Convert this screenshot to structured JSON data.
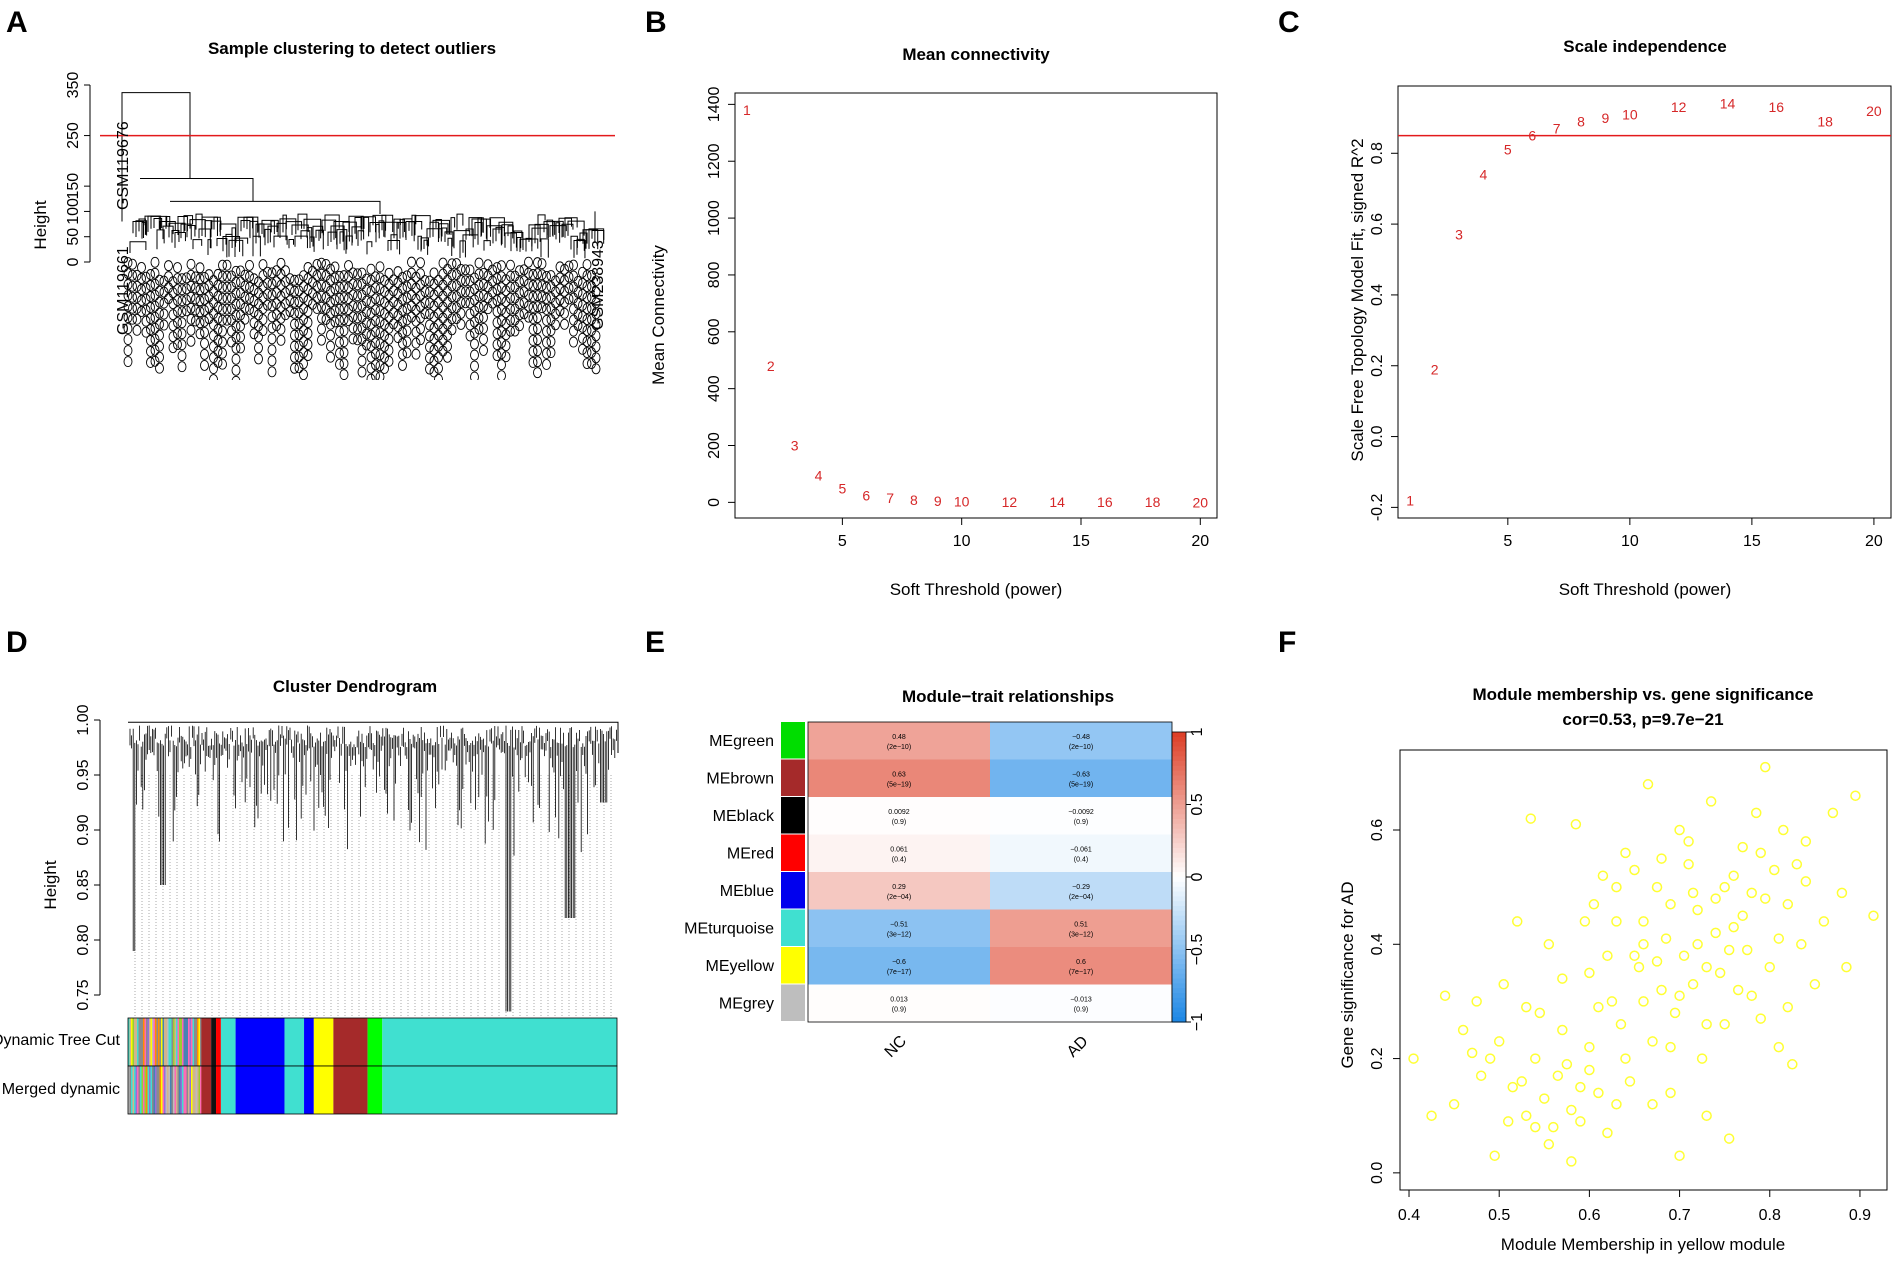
{
  "panels": {
    "A": {
      "label": "A",
      "title": "Sample clustering to detect outliers",
      "ylabel": "Height",
      "yticks": [
        "0",
        "50",
        "100",
        "150",
        "250",
        "350"
      ],
      "yticks_values": [
        0,
        50,
        100,
        150,
        250,
        350
      ],
      "cut_height": 250,
      "outlier_label": "GSM119676",
      "outlier_label_2": "GSM119661",
      "right_label": "GSM238943",
      "line_color": "#e31a1c"
    },
    "D": {
      "label": "D",
      "title": "Cluster Dendrogram",
      "ylabel": "Height",
      "yticks": [
        "0.75",
        "0.80",
        "0.85",
        "0.90",
        "0.95",
        "1.00"
      ],
      "ytick_values": [
        0.75,
        0.8,
        0.85,
        0.9,
        0.95,
        1.0
      ],
      "row_labels": [
        "Dynamic Tree Cut",
        "Merged dynamic"
      ],
      "module_colors": [
        "#bdbdbd",
        "#00cc00",
        "#a52a2a",
        "#111111",
        "#ff0000",
        "#0000ff",
        "#40e0d0",
        "#ffff00",
        "#ff8c00",
        "#8b4513",
        "#ff69b4",
        "#9370db"
      ]
    }
  },
  "chart_data": [
    {
      "panel": "B",
      "label": "B",
      "type": "scatter",
      "title": "Mean connectivity",
      "xlabel": "Soft Threshold (power)",
      "ylabel": "Mean Connectivity",
      "x": [
        1,
        2,
        3,
        4,
        5,
        6,
        7,
        8,
        9,
        10,
        12,
        14,
        16,
        18,
        20
      ],
      "y": [
        1380,
        480,
        200,
        95,
        48,
        25,
        15,
        8,
        5,
        3,
        2,
        1,
        1,
        1,
        0
      ],
      "point_labels": [
        "1",
        "2",
        "3",
        "4",
        "5",
        "6",
        "7",
        "8",
        "9",
        "10",
        "12",
        "14",
        "16",
        "18",
        "20"
      ],
      "xticks": [
        5,
        10,
        15,
        20
      ],
      "yticks": [
        0,
        200,
        400,
        600,
        800,
        1000,
        1200,
        1400
      ],
      "xlim": [
        0.5,
        20.7
      ],
      "ylim": [
        -55,
        1440
      ],
      "color": "#d62728"
    },
    {
      "panel": "C",
      "label": "C",
      "type": "scatter",
      "title": "Scale independence",
      "xlabel": "Soft Threshold (power)",
      "ylabel": "Scale Free Topology Model Fit, signed R^2",
      "x": [
        1,
        2,
        3,
        4,
        5,
        6,
        7,
        8,
        9,
        10,
        12,
        14,
        16,
        18,
        20
      ],
      "y": [
        -0.18,
        0.19,
        0.57,
        0.74,
        0.81,
        0.85,
        0.87,
        0.89,
        0.9,
        0.91,
        0.93,
        0.94,
        0.93,
        0.89,
        0.92
      ],
      "point_labels": [
        "1",
        "2",
        "3",
        "4",
        "5",
        "6",
        "7",
        "8",
        "9",
        "10",
        "12",
        "14",
        "16",
        "18",
        "20"
      ],
      "xticks": [
        5,
        10,
        15,
        20
      ],
      "yticks": [
        -0.2,
        0.0,
        0.2,
        0.4,
        0.6,
        0.8
      ],
      "ytick_labels": [
        "-0.2",
        "0.0",
        "0.2",
        "0.4",
        "0.6",
        "0.8"
      ],
      "xlim": [
        0.5,
        20.7
      ],
      "ylim": [
        -0.23,
        0.99
      ],
      "hline": 0.85,
      "color": "#d62728"
    },
    {
      "panel": "E",
      "label": "E",
      "type": "heatmap",
      "title": "Module−trait relationships",
      "rows": [
        "MEgreen",
        "MEbrown",
        "MEblack",
        "MEred",
        "MEblue",
        "MEturquoise",
        "MEyellow",
        "MEgrey"
      ],
      "row_colors": [
        "#00dd00",
        "#a52a2a",
        "#000000",
        "#ff0000",
        "#0000ee",
        "#40e0d0",
        "#ffff00",
        "#bebebe"
      ],
      "columns": [
        "NC",
        "AD"
      ],
      "values": [
        [
          0.48,
          -0.48
        ],
        [
          0.63,
          -0.63
        ],
        [
          0.0092,
          -0.0092
        ],
        [
          0.061,
          -0.061
        ],
        [
          0.29,
          -0.29
        ],
        [
          -0.51,
          0.51
        ],
        [
          -0.6,
          0.6
        ],
        [
          0.013,
          -0.013
        ]
      ],
      "value_labels": [
        [
          "0.48",
          "−0.48"
        ],
        [
          "0.63",
          "−0.63"
        ],
        [
          "0.0092",
          "−0.0092"
        ],
        [
          "0.061",
          "−0.061"
        ],
        [
          "0.29",
          "−0.29"
        ],
        [
          "−0.51",
          "0.51"
        ],
        [
          "−0.6",
          "0.6"
        ],
        [
          "0.013",
          "−0.013"
        ]
      ],
      "pvalues": [
        [
          "(2e−10)",
          "(2e−10)"
        ],
        [
          "(5e−19)",
          "(5e−19)"
        ],
        [
          "(0.9)",
          "(0.9)"
        ],
        [
          "(0.4)",
          "(0.4)"
        ],
        [
          "(2e−04)",
          "(2e−04)"
        ],
        [
          "(3e−12)",
          "(3e−12)"
        ],
        [
          "(7e−17)",
          "(7e−17)"
        ],
        [
          "(0.9)",
          "(0.9)"
        ]
      ],
      "colorbar_ticks": [
        1,
        0.5,
        0,
        -0.5,
        -1
      ],
      "colorbar_labels": [
        "1",
        "0.5",
        "0",
        "−0.5",
        "−1"
      ]
    },
    {
      "panel": "F",
      "label": "F",
      "type": "scatter",
      "title": "Module membership vs. gene significance",
      "subtitle": "cor=0.53, p=9.7e−21",
      "xlabel": "Module Membership in yellow module",
      "ylabel": "Gene significance for AD",
      "xticks": [
        0.4,
        0.5,
        0.6,
        0.7,
        0.8,
        0.9
      ],
      "xtick_labels": [
        "0.4",
        "0.5",
        "0.6",
        "0.7",
        "0.8",
        "0.9"
      ],
      "yticks": [
        0.0,
        0.2,
        0.4,
        0.6
      ],
      "ytick_labels": [
        "0.0",
        "0.2",
        "0.4",
        "0.6"
      ],
      "xlim": [
        0.39,
        0.93
      ],
      "ylim": [
        -0.03,
        0.74
      ],
      "color": "#ffff33",
      "points": [
        [
          0.405,
          0.2
        ],
        [
          0.425,
          0.1
        ],
        [
          0.44,
          0.31
        ],
        [
          0.45,
          0.12
        ],
        [
          0.46,
          0.25
        ],
        [
          0.47,
          0.21
        ],
        [
          0.475,
          0.3
        ],
        [
          0.48,
          0.17
        ],
        [
          0.49,
          0.2
        ],
        [
          0.495,
          0.03
        ],
        [
          0.5,
          0.23
        ],
        [
          0.505,
          0.33
        ],
        [
          0.51,
          0.09
        ],
        [
          0.515,
          0.15
        ],
        [
          0.52,
          0.44
        ],
        [
          0.525,
          0.16
        ],
        [
          0.53,
          0.29
        ],
        [
          0.535,
          0.62
        ],
        [
          0.54,
          0.08
        ],
        [
          0.545,
          0.28
        ],
        [
          0.55,
          0.13
        ],
        [
          0.555,
          0.05
        ],
        [
          0.56,
          0.08
        ],
        [
          0.565,
          0.17
        ],
        [
          0.57,
          0.34
        ],
        [
          0.575,
          0.19
        ],
        [
          0.58,
          0.11
        ],
        [
          0.585,
          0.61
        ],
        [
          0.59,
          0.09
        ],
        [
          0.595,
          0.44
        ],
        [
          0.6,
          0.22
        ],
        [
          0.605,
          0.47
        ],
        [
          0.61,
          0.14
        ],
        [
          0.615,
          0.52
        ],
        [
          0.62,
          0.38
        ],
        [
          0.625,
          0.3
        ],
        [
          0.63,
          0.12
        ],
        [
          0.635,
          0.26
        ],
        [
          0.64,
          0.56
        ],
        [
          0.645,
          0.16
        ],
        [
          0.65,
          0.53
        ],
        [
          0.655,
          0.36
        ],
        [
          0.66,
          0.4
        ],
        [
          0.665,
          0.68
        ],
        [
          0.67,
          0.23
        ],
        [
          0.675,
          0.5
        ],
        [
          0.68,
          0.32
        ],
        [
          0.685,
          0.41
        ],
        [
          0.69,
          0.14
        ],
        [
          0.695,
          0.28
        ],
        [
          0.7,
          0.6
        ],
        [
          0.705,
          0.38
        ],
        [
          0.71,
          0.54
        ],
        [
          0.715,
          0.33
        ],
        [
          0.72,
          0.46
        ],
        [
          0.725,
          0.2
        ],
        [
          0.73,
          0.26
        ],
        [
          0.735,
          0.65
        ],
        [
          0.74,
          0.48
        ],
        [
          0.745,
          0.35
        ],
        [
          0.75,
          0.5
        ],
        [
          0.755,
          0.06
        ],
        [
          0.76,
          0.43
        ],
        [
          0.765,
          0.32
        ],
        [
          0.77,
          0.57
        ],
        [
          0.775,
          0.39
        ],
        [
          0.78,
          0.49
        ],
        [
          0.785,
          0.63
        ],
        [
          0.79,
          0.27
        ],
        [
          0.795,
          0.71
        ],
        [
          0.8,
          0.36
        ],
        [
          0.805,
          0.53
        ],
        [
          0.81,
          0.22
        ],
        [
          0.815,
          0.6
        ],
        [
          0.82,
          0.47
        ],
        [
          0.825,
          0.19
        ],
        [
          0.83,
          0.54
        ],
        [
          0.835,
          0.4
        ],
        [
          0.84,
          0.58
        ],
        [
          0.85,
          0.33
        ],
        [
          0.86,
          0.44
        ],
        [
          0.87,
          0.63
        ],
        [
          0.88,
          0.49
        ],
        [
          0.885,
          0.36
        ],
        [
          0.895,
          0.66
        ],
        [
          0.915,
          0.45
        ],
        [
          0.555,
          0.4
        ],
        [
          0.6,
          0.35
        ],
        [
          0.63,
          0.44
        ],
        [
          0.66,
          0.3
        ],
        [
          0.69,
          0.47
        ],
        [
          0.72,
          0.4
        ],
        [
          0.75,
          0.26
        ],
        [
          0.78,
          0.31
        ],
        [
          0.67,
          0.12
        ],
        [
          0.62,
          0.07
        ],
        [
          0.58,
          0.02
        ],
        [
          0.7,
          0.03
        ],
        [
          0.73,
          0.1
        ],
        [
          0.64,
          0.2
        ],
        [
          0.68,
          0.55
        ],
        [
          0.71,
          0.58
        ],
        [
          0.74,
          0.42
        ],
        [
          0.76,
          0.52
        ],
        [
          0.53,
          0.1
        ],
        [
          0.57,
          0.25
        ],
        [
          0.61,
          0.29
        ],
        [
          0.65,
          0.38
        ],
        [
          0.69,
          0.22
        ],
        [
          0.73,
          0.36
        ],
        [
          0.77,
          0.45
        ],
        [
          0.81,
          0.41
        ],
        [
          0.84,
          0.51
        ],
        [
          0.79,
          0.56
        ],
        [
          0.6,
          0.18
        ],
        [
          0.66,
          0.44
        ],
        [
          0.7,
          0.31
        ],
        [
          0.54,
          0.2
        ],
        [
          0.59,
          0.15
        ],
        [
          0.63,
          0.5
        ],
        [
          0.675,
          0.37
        ],
        [
          0.715,
          0.49
        ],
        [
          0.755,
          0.39
        ],
        [
          0.795,
          0.48
        ],
        [
          0.82,
          0.29
        ]
      ]
    }
  ]
}
